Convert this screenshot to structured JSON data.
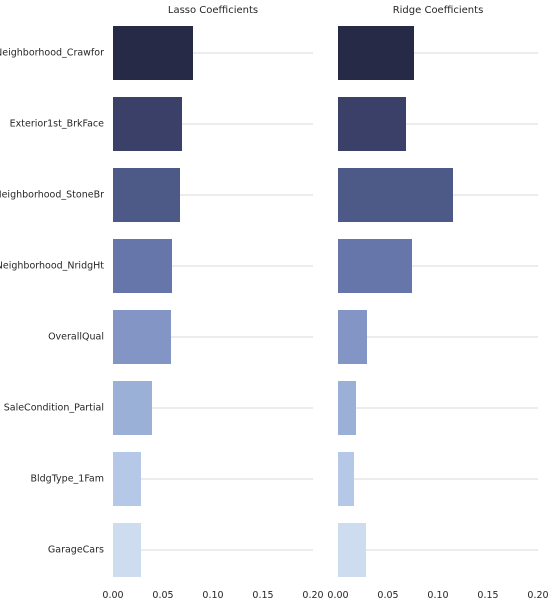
{
  "chart_data": [
    {
      "type": "bar",
      "orientation": "horizontal",
      "title": "Lasso Coefficients",
      "xlabel": "",
      "ylabel": "",
      "xlim": [
        0,
        0.2
      ],
      "xticks": [
        "0.00",
        "0.05",
        "0.10",
        "0.15",
        "0.20"
      ],
      "grid": "horizontal lines at each category",
      "categories": [
        "Neighborhood_Crawfor",
        "Exterior1st_BrkFace",
        "Neighborhood_StoneBr",
        "Neighborhood_NridgHt",
        "OverallQual",
        "SaleCondition_Partial",
        "BldgType_1Fam",
        "GarageCars"
      ],
      "values": [
        0.08,
        0.069,
        0.067,
        0.059,
        0.058,
        0.039,
        0.028,
        0.028
      ]
    },
    {
      "type": "bar",
      "orientation": "horizontal",
      "title": "Ridge Coefficients",
      "xlabel": "",
      "ylabel": "",
      "xlim": [
        0,
        0.2
      ],
      "xticks": [
        "0.00",
        "0.05",
        "0.10",
        "0.15",
        "0.20"
      ],
      "grid": "horizontal lines at each category",
      "categories": [
        "Neighborhood_Crawfor",
        "Exterior1st_BrkFace",
        "Neighborhood_StoneBr",
        "Neighborhood_NridgHt",
        "OverallQual",
        "SaleCondition_Partial",
        "BldgType_1Fam",
        "GarageCars"
      ],
      "values": [
        0.076,
        0.068,
        0.115,
        0.074,
        0.029,
        0.018,
        0.016,
        0.028
      ]
    }
  ],
  "colors": {
    "bars": [
      "#262a47",
      "#3b4069",
      "#4d5987",
      "#6776aa",
      "#8395c4",
      "#9bb0d7",
      "#b5c8e7",
      "#cedcf0"
    ],
    "grid": "#cccccc",
    "text": "#262626",
    "background": "#ffffff"
  }
}
